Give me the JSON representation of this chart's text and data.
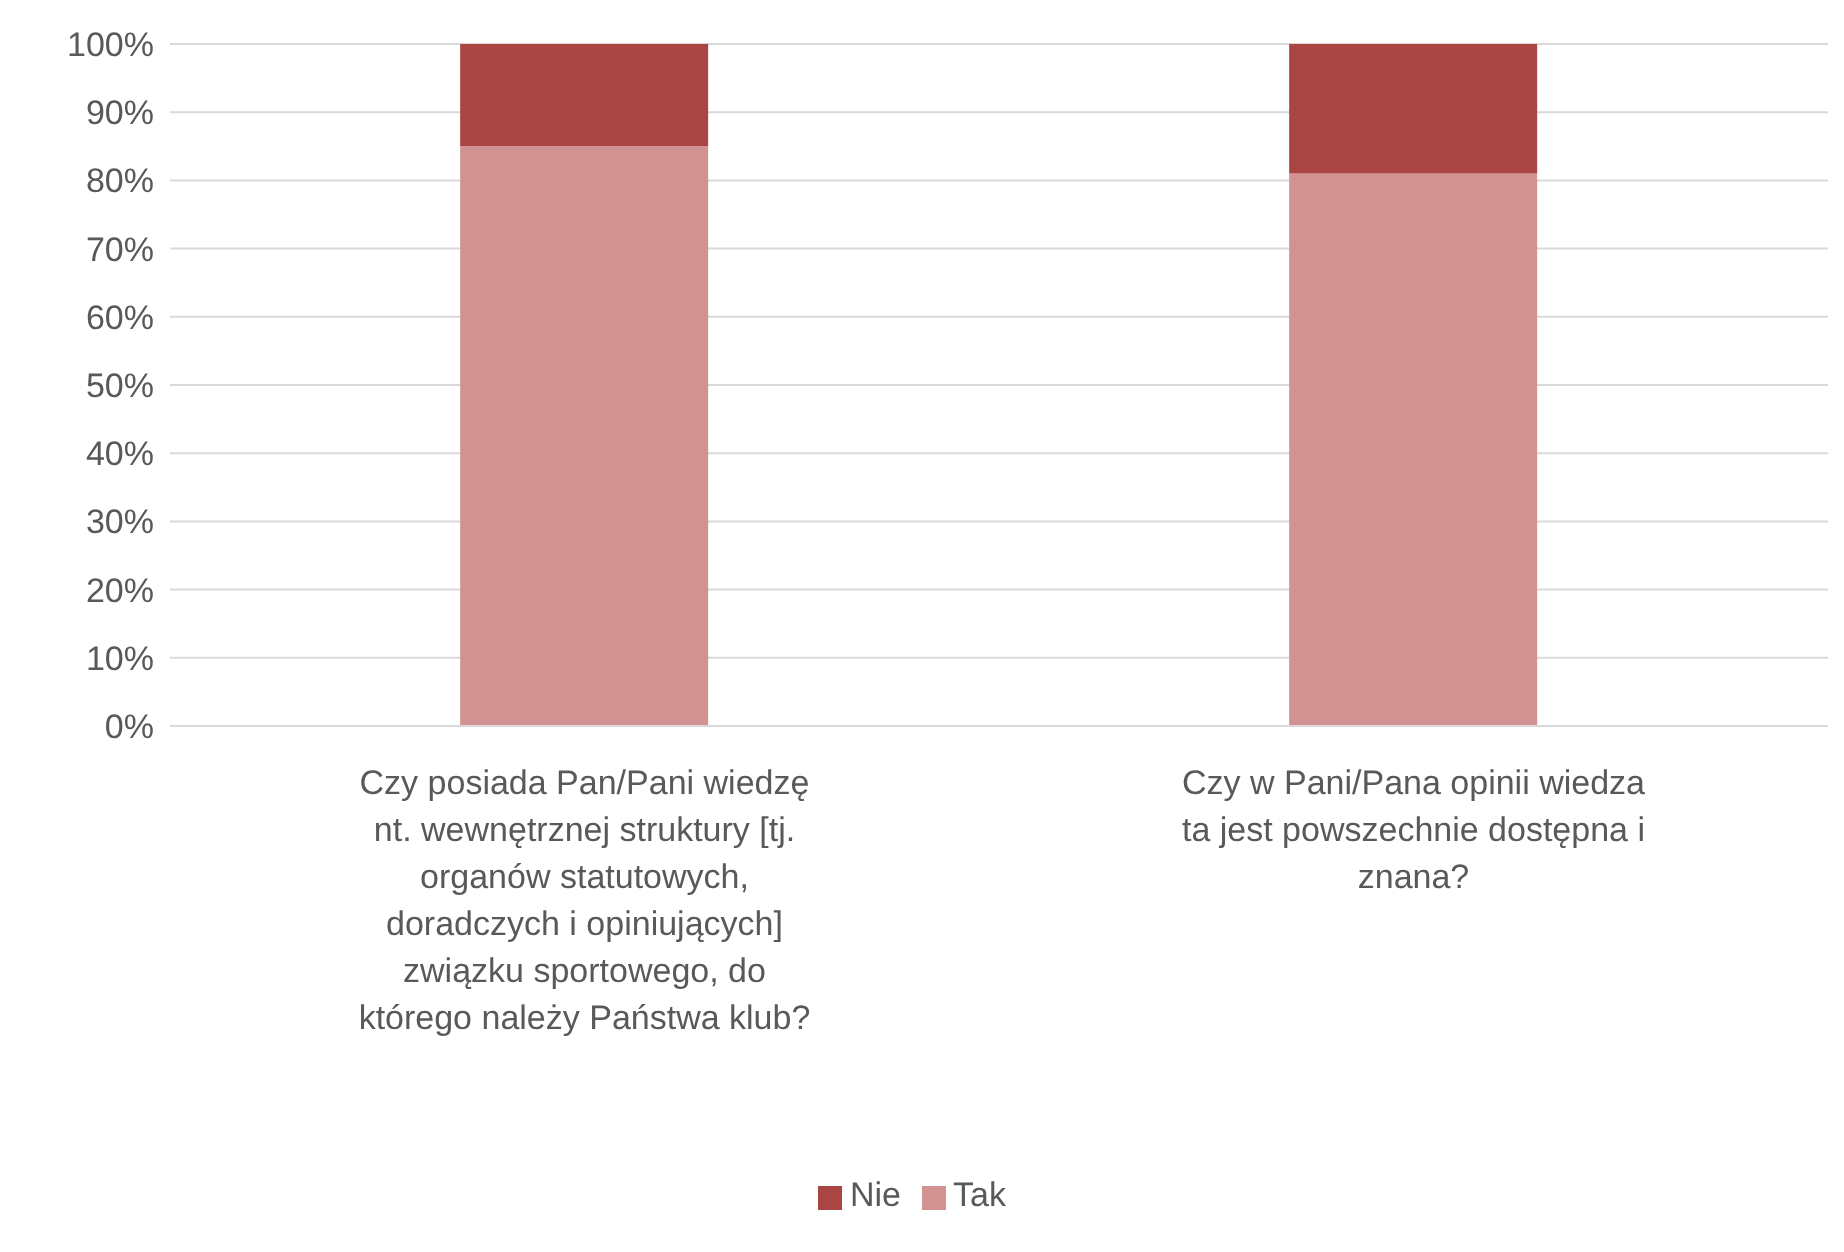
{
  "chart_data": {
    "type": "bar",
    "stacked": true,
    "categories": [
      "Czy posiada Pan/Pani wiedzę nt. wewnętrznej struktury [tj. organów statutowych, doradczych i opiniujących] związku sportowego, do którego należy Państwa klub?",
      "Czy w Pani/Pana opinii wiedza ta jest powszechnie dostępna i znana?"
    ],
    "series": [
      {
        "name": "Tak",
        "color": "#d19391",
        "values": [
          85,
          81
        ]
      },
      {
        "name": "Nie",
        "color": "#a94542",
        "values": [
          15,
          19
        ]
      }
    ],
    "ylim": [
      0,
      100
    ],
    "yticks": [
      {
        "value": 0,
        "label": "0%"
      },
      {
        "value": 10,
        "label": "10%"
      },
      {
        "value": 20,
        "label": "20%"
      },
      {
        "value": 30,
        "label": "30%"
      },
      {
        "value": 40,
        "label": "40%"
      },
      {
        "value": 50,
        "label": "50%"
      },
      {
        "value": 60,
        "label": "60%"
      },
      {
        "value": 70,
        "label": "70%"
      },
      {
        "value": 80,
        "label": "80%"
      },
      {
        "value": 90,
        "label": "90%"
      },
      {
        "value": 100,
        "label": "100%"
      }
    ],
    "grid": "y",
    "legend": "bottom"
  }
}
